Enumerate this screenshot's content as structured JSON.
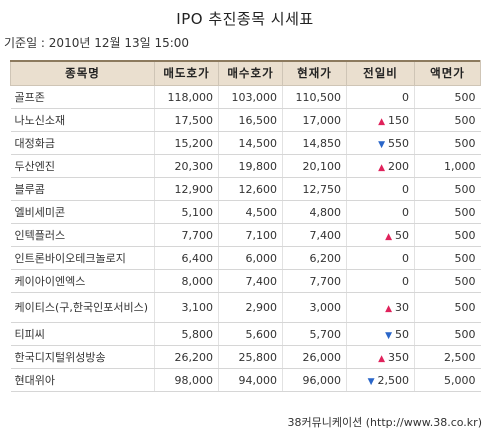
{
  "page": {
    "title": "IPO 추진종목 시세표",
    "base_date_label": "기준일 : ",
    "base_date": "2010년 12월 13일 15:00"
  },
  "table": {
    "headers": [
      "종목명",
      "매도호가",
      "매수호가",
      "현재가",
      "전일비",
      "액면가"
    ],
    "rows": [
      {
        "name": "골프존",
        "ask": "118,000",
        "bid": "103,000",
        "price": "110,500",
        "change_dir": "",
        "change": "0",
        "par": "500"
      },
      {
        "name": "나노신소재",
        "ask": "17,500",
        "bid": "16,500",
        "price": "17,000",
        "change_dir": "up",
        "change": "150",
        "par": "500"
      },
      {
        "name": "대정화금",
        "ask": "15,200",
        "bid": "14,500",
        "price": "14,850",
        "change_dir": "down",
        "change": "550",
        "par": "500"
      },
      {
        "name": "두산엔진",
        "ask": "20,300",
        "bid": "19,800",
        "price": "20,100",
        "change_dir": "up",
        "change": "200",
        "par": "1,000"
      },
      {
        "name": "블루콤",
        "ask": "12,900",
        "bid": "12,600",
        "price": "12,750",
        "change_dir": "",
        "change": "0",
        "par": "500"
      },
      {
        "name": "엘비세미콘",
        "ask": "5,100",
        "bid": "4,500",
        "price": "4,800",
        "change_dir": "",
        "change": "0",
        "par": "500"
      },
      {
        "name": "인텍플러스",
        "ask": "7,700",
        "bid": "7,100",
        "price": "7,400",
        "change_dir": "up",
        "change": "50",
        "par": "500"
      },
      {
        "name": "인트론바이오테크놀로지",
        "ask": "6,400",
        "bid": "6,000",
        "price": "6,200",
        "change_dir": "",
        "change": "0",
        "par": "500"
      },
      {
        "name": "케이아이엔엑스",
        "ask": "8,000",
        "bid": "7,400",
        "price": "7,700",
        "change_dir": "",
        "change": "0",
        "par": "500"
      },
      {
        "name": "케이티스(구,한국인포서비스)",
        "ask": "3,100",
        "bid": "2,900",
        "price": "3,000",
        "change_dir": "up",
        "change": "30",
        "par": "500"
      },
      {
        "name": "티피씨",
        "ask": "5,800",
        "bid": "5,600",
        "price": "5,700",
        "change_dir": "down",
        "change": "50",
        "par": "500"
      },
      {
        "name": "한국디지털위성방송",
        "ask": "26,200",
        "bid": "25,800",
        "price": "26,000",
        "change_dir": "up",
        "change": "350",
        "par": "2,500"
      },
      {
        "name": "현대위아",
        "ask": "98,000",
        "bid": "94,000",
        "price": "96,000",
        "change_dir": "down",
        "change": "2,500",
        "par": "5,000"
      }
    ]
  },
  "footer": {
    "source": "38커뮤니케이션 (http://www.38.co.kr)"
  },
  "colors": {
    "header_bg": "#eadfcf",
    "up_arrow": "#e0225b",
    "down_arrow": "#2a66c9"
  },
  "icons": {
    "up": "up-triangle-icon",
    "down": "down-triangle-icon"
  }
}
